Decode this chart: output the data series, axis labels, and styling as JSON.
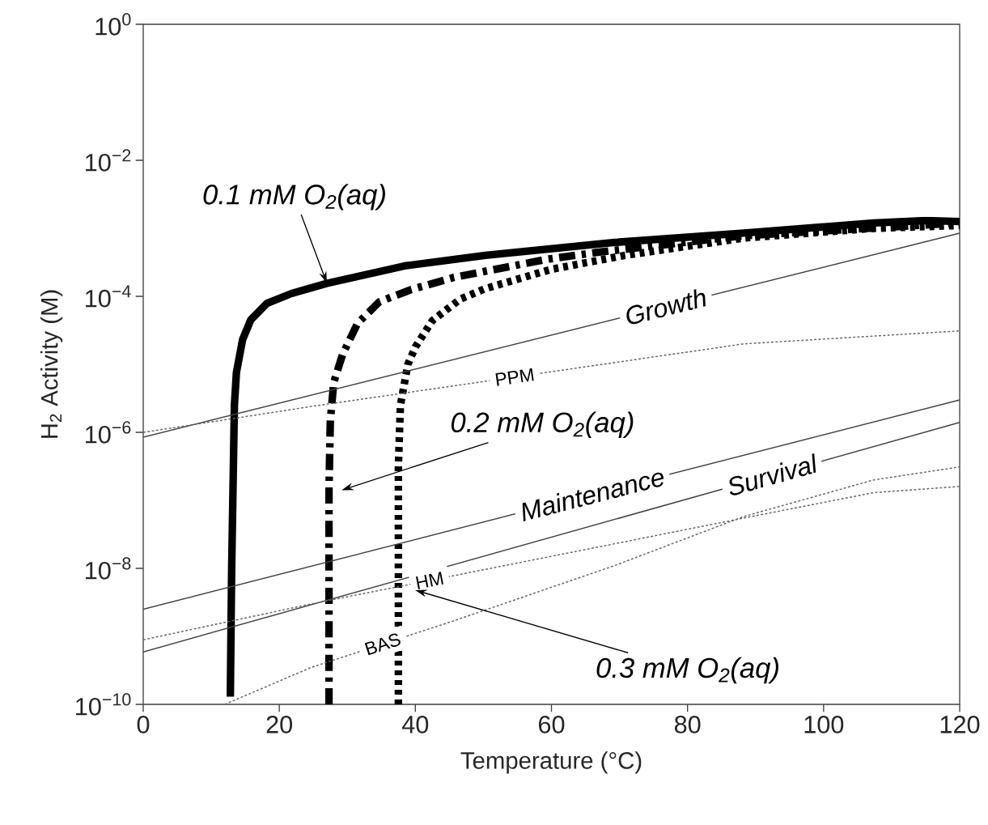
{
  "chart_data": {
    "type": "line",
    "xlabel": "Temperature (°C)",
    "ylabel": "H$_{2}$ Activity (M)",
    "log": "y",
    "xlim": [
      0,
      120
    ],
    "ylim": [
      1e-10,
      1
    ],
    "xticks": [
      0,
      20,
      40,
      60,
      80,
      100,
      120
    ],
    "yticks": [
      {
        "value": 1e-10,
        "label": "10$^{−10}$"
      },
      {
        "value": 1e-08,
        "label": "10$^{−8}$"
      },
      {
        "value": 1e-06,
        "label": "10$^{−6}$"
      },
      {
        "value": 0.0001,
        "label": "10$^{−4}$"
      },
      {
        "value": 0.01,
        "label": "10$^{−2}$"
      },
      {
        "value": 1,
        "label": "10$^{0}$"
      }
    ],
    "marker": "none",
    "series": [
      {
        "color": "#000000",
        "line_style": "solid",
        "x": [
          12.8,
          13,
          13.4,
          13.7,
          14.6,
          15.8,
          18.2,
          21.8,
          27,
          38.4,
          50.3,
          69.3,
          88.3,
          107.4,
          115,
          120
        ],
        "values": [
          1.3e-10,
          1e-08,
          2.5e-06,
          7.6e-06,
          2.3e-05,
          4.5e-05,
          7.9e-05,
          0.00011,
          0.000155,
          0.00028,
          0.0004,
          0.00062,
          0.00085,
          0.0012,
          0.0013,
          0.00126
        ]
      },
      {
        "color": "#000000",
        "line_style": "dashed",
        "x": [
          27.3,
          27.3,
          27.5,
          28,
          29.3,
          31.5,
          34.7,
          39.4,
          45.7,
          59.3,
          66.5,
          88.3,
          120
        ],
        "values": [
          1e-10,
          1.4e-07,
          1.5e-06,
          5.4e-06,
          1.4e-05,
          4e-05,
          8.3e-05,
          0.000126,
          0.00019,
          0.00035,
          0.00044,
          0.00078,
          0.0012
        ]
      },
      {
        "color": "#000000",
        "line_style": "dotted",
        "x": [
          37.5,
          37.5,
          37.8,
          38.9,
          40,
          42.5,
          46.6,
          50.3,
          60,
          70.8,
          88.3,
          107.4,
          120
        ],
        "values": [
          1e-10,
          3.2e-07,
          2.5e-06,
          1e-05,
          1.8e-05,
          4.4e-05,
          9.1e-05,
          0.00013,
          0.00025,
          0.0004,
          0.00072,
          0.001,
          0.0011
        ]
      },
      {
        "name": "Growth",
        "color": "#444444",
        "line_style": "solid",
        "x": [
          0,
          120
        ],
        "values": [
          8.5e-07,
          0.00085
        ]
      },
      {
        "name": "Maintenance",
        "color": "#444444",
        "line_style": "solid",
        "x": [
          0,
          120
        ],
        "values": [
          2.5e-09,
          3e-06
        ]
      },
      {
        "name": "Survival",
        "color": "#444444",
        "line_style": "solid",
        "x": [
          0,
          120
        ],
        "values": [
          5.9e-10,
          1.4e-06
        ]
      },
      {
        "name": "PPM",
        "color": "#666666",
        "line_style": "dotted",
        "x": [
          0,
          24.7,
          88.3,
          120
        ],
        "values": [
          1e-06,
          2.4e-06,
          2e-05,
          3.1e-05
        ]
      },
      {
        "name": "HM",
        "color": "#666666",
        "line_style": "dotted",
        "x": [
          0,
          24.7,
          69.3,
          88.3,
          107.4,
          120
        ],
        "values": [
          8.9e-10,
          3e-09,
          2.3e-08,
          5.5e-08,
          1.3e-07,
          1.6e-07
        ]
      },
      {
        "name": "BAS",
        "color": "#666666",
        "line_style": "dotted",
        "x": [
          12,
          24.7,
          45.7,
          69.3,
          88.3,
          107.4,
          120
        ],
        "values": [
          1e-10,
          3.5e-10,
          1.7e-09,
          1.1e-08,
          5.8e-08,
          2e-07,
          3.1e-07
        ]
      }
    ],
    "annotations": [
      {
        "text": "0.1 mM O$_{2}$(aq)",
        "x": 27,
        "y": 0.000155
      },
      "0.2 mM O$_{2}$(aq)",
      "0.3 mM O$_{2}$(aq)"
    ]
  }
}
